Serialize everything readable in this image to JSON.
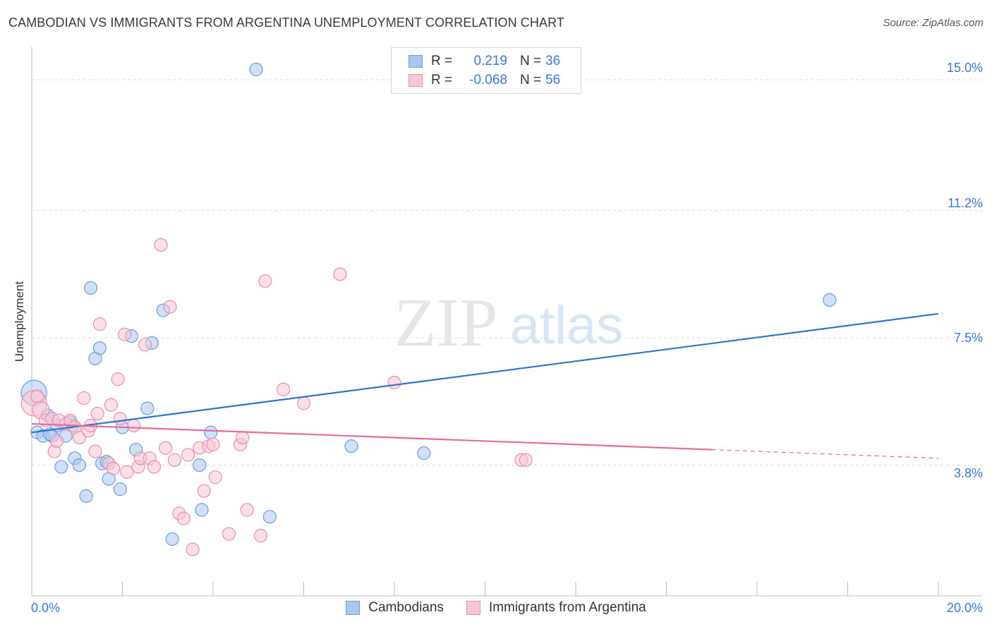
{
  "title": "CAMBODIAN VS IMMIGRANTS FROM ARGENTINA UNEMPLOYMENT CORRELATION CHART",
  "source": "Source: ZipAtlas.com",
  "watermark": {
    "zip": "ZIP",
    "atlas": "atlas"
  },
  "legend": {
    "rows": [
      {
        "r_label": "R =",
        "r_value": "0.219",
        "n_label": "N =",
        "n_value": "36",
        "color": "#a9c8f0",
        "border": "#6a9ee0"
      },
      {
        "r_label": "R =",
        "r_value": "-0.068",
        "n_label": "N =",
        "n_value": "56",
        "color": "#f8c7d6",
        "border": "#e98fb0"
      }
    ]
  },
  "bottom_legend": [
    {
      "label": "Cambodians",
      "color": "#a9c8f0",
      "border": "#6a9ee0"
    },
    {
      "label": "Immigrants from Argentina",
      "color": "#f8c7d6",
      "border": "#e98fb0"
    }
  ],
  "axis": {
    "y_title": "Unemployment",
    "y_ticks": [
      "15.0%",
      "11.2%",
      "7.5%",
      "3.8%"
    ],
    "x_min_label": "0.0%",
    "x_max_label": "20.0%"
  },
  "colors": {
    "blue": "#2f74d0",
    "pink": "#e8699a",
    "blue_fill": "#a9c8f0",
    "pink_fill": "#f8c7d6"
  },
  "chart_data": {
    "type": "scatter",
    "xlabel": "",
    "ylabel": "Unemployment",
    "xlim": [
      0,
      20
    ],
    "ylim": [
      0,
      15.7
    ],
    "y_gridlines": [
      3.8,
      7.5,
      11.2,
      15.0
    ],
    "series": [
      {
        "name": "Cambodians",
        "r": 0.219,
        "n": 36,
        "trend": {
          "x": [
            0,
            20
          ],
          "y": [
            4.75,
            8.2
          ]
        },
        "points": [
          [
            0.05,
            5.9,
            18
          ],
          [
            0.12,
            4.75,
            9
          ],
          [
            0.25,
            4.65,
            9
          ],
          [
            0.35,
            5.25,
            9
          ],
          [
            0.45,
            4.65,
            9
          ],
          [
            0.55,
            4.95,
            9
          ],
          [
            0.65,
            3.75,
            9
          ],
          [
            0.75,
            4.65,
            9
          ],
          [
            0.85,
            5.05,
            9
          ],
          [
            0.9,
            4.95,
            9
          ],
          [
            0.95,
            4.0,
            9
          ],
          [
            1.05,
            3.8,
            9
          ],
          [
            1.2,
            2.9,
            9
          ],
          [
            1.3,
            8.95,
            9
          ],
          [
            1.4,
            6.9,
            9
          ],
          [
            1.5,
            7.2,
            9
          ],
          [
            1.55,
            3.85,
            9
          ],
          [
            1.65,
            3.9,
            9
          ],
          [
            1.7,
            3.4,
            9
          ],
          [
            1.95,
            3.1,
            9
          ],
          [
            2.0,
            4.9,
            9
          ],
          [
            2.2,
            7.55,
            9
          ],
          [
            2.3,
            4.25,
            9
          ],
          [
            2.55,
            5.45,
            9
          ],
          [
            2.65,
            7.35,
            9
          ],
          [
            2.9,
            8.3,
            9
          ],
          [
            3.1,
            1.65,
            9
          ],
          [
            3.7,
            3.8,
            9
          ],
          [
            3.75,
            2.5,
            9
          ],
          [
            3.95,
            4.75,
            9
          ],
          [
            4.95,
            15.3,
            9
          ],
          [
            5.25,
            2.3,
            9
          ],
          [
            7.05,
            4.35,
            9
          ],
          [
            8.65,
            4.15,
            9
          ],
          [
            17.6,
            8.6,
            9
          ],
          [
            0.4,
            4.7,
            9
          ]
        ]
      },
      {
        "name": "Immigrants from Argentina",
        "r": -0.068,
        "n": 56,
        "trend": {
          "x": [
            0,
            15
          ],
          "y": [
            5.0,
            4.25
          ],
          "dash_x": [
            15,
            20
          ],
          "dash_y": [
            4.25,
            4.0
          ]
        },
        "points": [
          [
            0.05,
            5.6,
            18
          ],
          [
            0.12,
            5.8,
            9
          ],
          [
            0.2,
            5.4,
            12
          ],
          [
            0.3,
            5.1,
            9
          ],
          [
            0.45,
            5.15,
            9
          ],
          [
            0.5,
            4.2,
            9
          ],
          [
            0.55,
            4.5,
            9
          ],
          [
            0.6,
            5.1,
            9
          ],
          [
            0.75,
            5.0,
            9
          ],
          [
            0.85,
            5.1,
            9
          ],
          [
            0.95,
            4.9,
            9
          ],
          [
            1.05,
            4.6,
            9
          ],
          [
            1.15,
            5.75,
            9
          ],
          [
            1.25,
            4.8,
            9
          ],
          [
            1.3,
            4.95,
            9
          ],
          [
            1.4,
            4.2,
            9
          ],
          [
            1.45,
            5.3,
            9
          ],
          [
            1.5,
            7.9,
            9
          ],
          [
            1.7,
            3.85,
            9
          ],
          [
            1.75,
            5.55,
            9
          ],
          [
            1.8,
            3.7,
            9
          ],
          [
            1.9,
            6.3,
            9
          ],
          [
            1.95,
            5.15,
            9
          ],
          [
            2.05,
            7.6,
            9
          ],
          [
            2.1,
            3.6,
            9
          ],
          [
            2.25,
            4.95,
            9
          ],
          [
            2.35,
            3.75,
            9
          ],
          [
            2.4,
            4.0,
            9
          ],
          [
            2.5,
            7.3,
            9
          ],
          [
            2.6,
            4.0,
            9
          ],
          [
            2.7,
            3.75,
            9
          ],
          [
            2.85,
            10.2,
            9
          ],
          [
            2.95,
            4.3,
            9
          ],
          [
            3.05,
            8.4,
            9
          ],
          [
            3.15,
            3.95,
            9
          ],
          [
            3.25,
            2.4,
            9
          ],
          [
            3.35,
            2.25,
            9
          ],
          [
            3.45,
            4.1,
            9
          ],
          [
            3.55,
            1.35,
            9
          ],
          [
            3.7,
            4.3,
            9
          ],
          [
            3.8,
            3.05,
            9
          ],
          [
            3.9,
            4.35,
            9
          ],
          [
            4.0,
            4.4,
            9
          ],
          [
            4.05,
            3.45,
            9
          ],
          [
            4.35,
            1.8,
            9
          ],
          [
            4.6,
            4.4,
            9
          ],
          [
            4.65,
            4.6,
            9
          ],
          [
            4.75,
            2.5,
            9
          ],
          [
            5.05,
            1.75,
            9
          ],
          [
            5.15,
            9.15,
            9
          ],
          [
            5.55,
            6.0,
            9
          ],
          [
            6.0,
            5.6,
            9
          ],
          [
            6.8,
            9.35,
            9
          ],
          [
            8.0,
            6.2,
            9
          ],
          [
            10.8,
            3.95,
            9
          ],
          [
            10.9,
            3.95,
            9
          ]
        ]
      }
    ]
  }
}
